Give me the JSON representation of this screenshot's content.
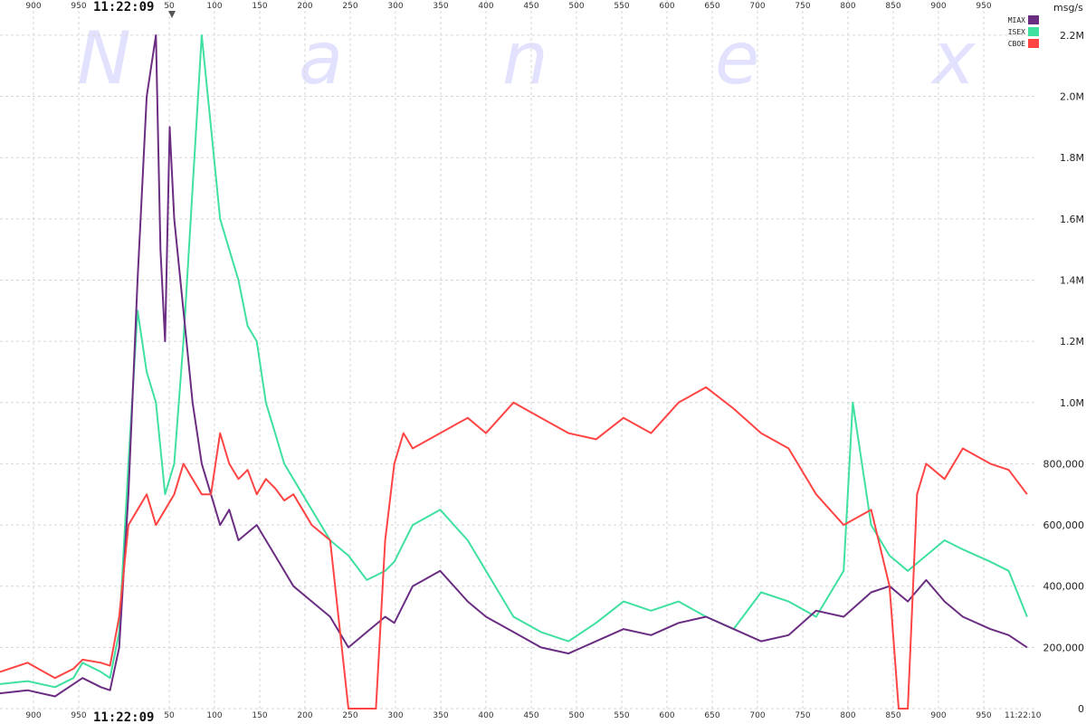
{
  "watermark": [
    "N",
    "a",
    "n",
    "e",
    "x"
  ],
  "time_start_top": "11:22:09",
  "time_start_bottom": "11:22:09",
  "time_end": "11:22:10",
  "y_unit": "msg/s",
  "chart_data": {
    "type": "line",
    "title": "",
    "xlabel": "",
    "ylabel": "msg/s",
    "x_unit_note": "milliseconds within 11:22:09 -> 11:22:10",
    "x_ticks_top": [
      "900",
      "950",
      "50",
      "100",
      "150",
      "200",
      "250",
      "300",
      "350",
      "400",
      "450",
      "500",
      "550",
      "600",
      "650",
      "700",
      "750",
      "800",
      "850",
      "900",
      "950"
    ],
    "x_ticks_bottom": [
      "900",
      "950",
      "50",
      "100",
      "150",
      "200",
      "250",
      "300",
      "350",
      "400",
      "450",
      "500",
      "550",
      "600",
      "650",
      "700",
      "750",
      "800",
      "850",
      "900",
      "950"
    ],
    "y_ticks": [
      "2.2M",
      "2.0M",
      "1.8M",
      "1.6M",
      "1.4M",
      "1.2M",
      "1.0M",
      "800,000",
      "600,000",
      "400,000",
      "200,000",
      "0"
    ],
    "ylim": [
      0,
      2250000
    ],
    "xlim": [
      870,
      2000
    ],
    "grid": true,
    "legend_position": "top-right",
    "series": [
      {
        "name": "MIAX",
        "color": "#6b2d82",
        "x": [
          870,
          900,
          930,
          950,
          960,
          980,
          990,
          1000,
          1010,
          1020,
          1030,
          1040,
          1045,
          1050,
          1055,
          1060,
          1070,
          1080,
          1090,
          1100,
          1110,
          1120,
          1130,
          1150,
          1170,
          1190,
          1210,
          1230,
          1250,
          1270,
          1290,
          1300,
          1320,
          1350,
          1380,
          1400,
          1430,
          1460,
          1490,
          1520,
          1550,
          1580,
          1610,
          1640,
          1670,
          1700,
          1730,
          1760,
          1790,
          1820,
          1840,
          1860,
          1880,
          1900,
          1920,
          1950,
          1970,
          1990
        ],
        "values": [
          50000,
          60000,
          40000,
          80000,
          100000,
          70000,
          60000,
          200000,
          700000,
          1400000,
          2000000,
          2200000,
          1500000,
          1200000,
          1900000,
          1600000,
          1300000,
          1000000,
          800000,
          700000,
          600000,
          650000,
          550000,
          600000,
          500000,
          400000,
          350000,
          300000,
          200000,
          250000,
          300000,
          280000,
          400000,
          450000,
          350000,
          300000,
          250000,
          200000,
          180000,
          220000,
          260000,
          240000,
          280000,
          300000,
          260000,
          220000,
          240000,
          320000,
          300000,
          380000,
          400000,
          350000,
          420000,
          350000,
          300000,
          260000,
          240000,
          200000
        ]
      },
      {
        "name": "ISEX",
        "color": "#3fe0a0",
        "x": [
          870,
          900,
          930,
          950,
          960,
          980,
          990,
          1000,
          1010,
          1020,
          1030,
          1040,
          1050,
          1060,
          1070,
          1080,
          1090,
          1100,
          1110,
          1120,
          1130,
          1140,
          1150,
          1160,
          1170,
          1180,
          1190,
          1210,
          1230,
          1250,
          1270,
          1290,
          1300,
          1320,
          1350,
          1380,
          1400,
          1430,
          1460,
          1490,
          1520,
          1550,
          1580,
          1610,
          1640,
          1670,
          1700,
          1730,
          1760,
          1790,
          1800,
          1820,
          1840,
          1860,
          1880,
          1900,
          1920,
          1950,
          1970,
          1990
        ],
        "values": [
          80000,
          90000,
          70000,
          100000,
          150000,
          120000,
          100000,
          250000,
          800000,
          1300000,
          1100000,
          1000000,
          700000,
          800000,
          1200000,
          1700000,
          2200000,
          1900000,
          1600000,
          1500000,
          1400000,
          1250000,
          1200000,
          1000000,
          900000,
          800000,
          750000,
          650000,
          550000,
          500000,
          420000,
          450000,
          480000,
          600000,
          650000,
          550000,
          450000,
          300000,
          250000,
          220000,
          280000,
          350000,
          320000,
          350000,
          300000,
          260000,
          380000,
          350000,
          300000,
          450000,
          1000000,
          600000,
          500000,
          450000,
          500000,
          550000,
          520000,
          480000,
          450000,
          300000
        ]
      },
      {
        "name": "CBOE",
        "color": "#ff4444",
        "x": [
          870,
          900,
          930,
          950,
          960,
          980,
          990,
          1000,
          1010,
          1020,
          1030,
          1040,
          1050,
          1060,
          1070,
          1080,
          1090,
          1100,
          1110,
          1120,
          1130,
          1140,
          1150,
          1160,
          1170,
          1180,
          1190,
          1200,
          1210,
          1230,
          1250,
          1270,
          1280,
          1290,
          1300,
          1310,
          1320,
          1350,
          1380,
          1400,
          1430,
          1460,
          1490,
          1520,
          1550,
          1580,
          1610,
          1640,
          1670,
          1700,
          1730,
          1760,
          1790,
          1820,
          1840,
          1850,
          1860,
          1870,
          1880,
          1900,
          1920,
          1950,
          1970,
          1990
        ],
        "values": [
          120000,
          150000,
          100000,
          130000,
          160000,
          150000,
          140000,
          300000,
          600000,
          650000,
          700000,
          600000,
          650000,
          700000,
          800000,
          750000,
          700000,
          700000,
          900000,
          800000,
          750000,
          780000,
          700000,
          750000,
          720000,
          680000,
          700000,
          650000,
          600000,
          550000,
          0,
          0,
          0,
          550000,
          800000,
          900000,
          850000,
          900000,
          950000,
          900000,
          1000000,
          950000,
          900000,
          880000,
          950000,
          900000,
          1000000,
          1050000,
          980000,
          900000,
          850000,
          700000,
          600000,
          650000,
          400000,
          0,
          0,
          700000,
          800000,
          750000,
          850000,
          800000,
          780000,
          700000
        ]
      }
    ]
  }
}
